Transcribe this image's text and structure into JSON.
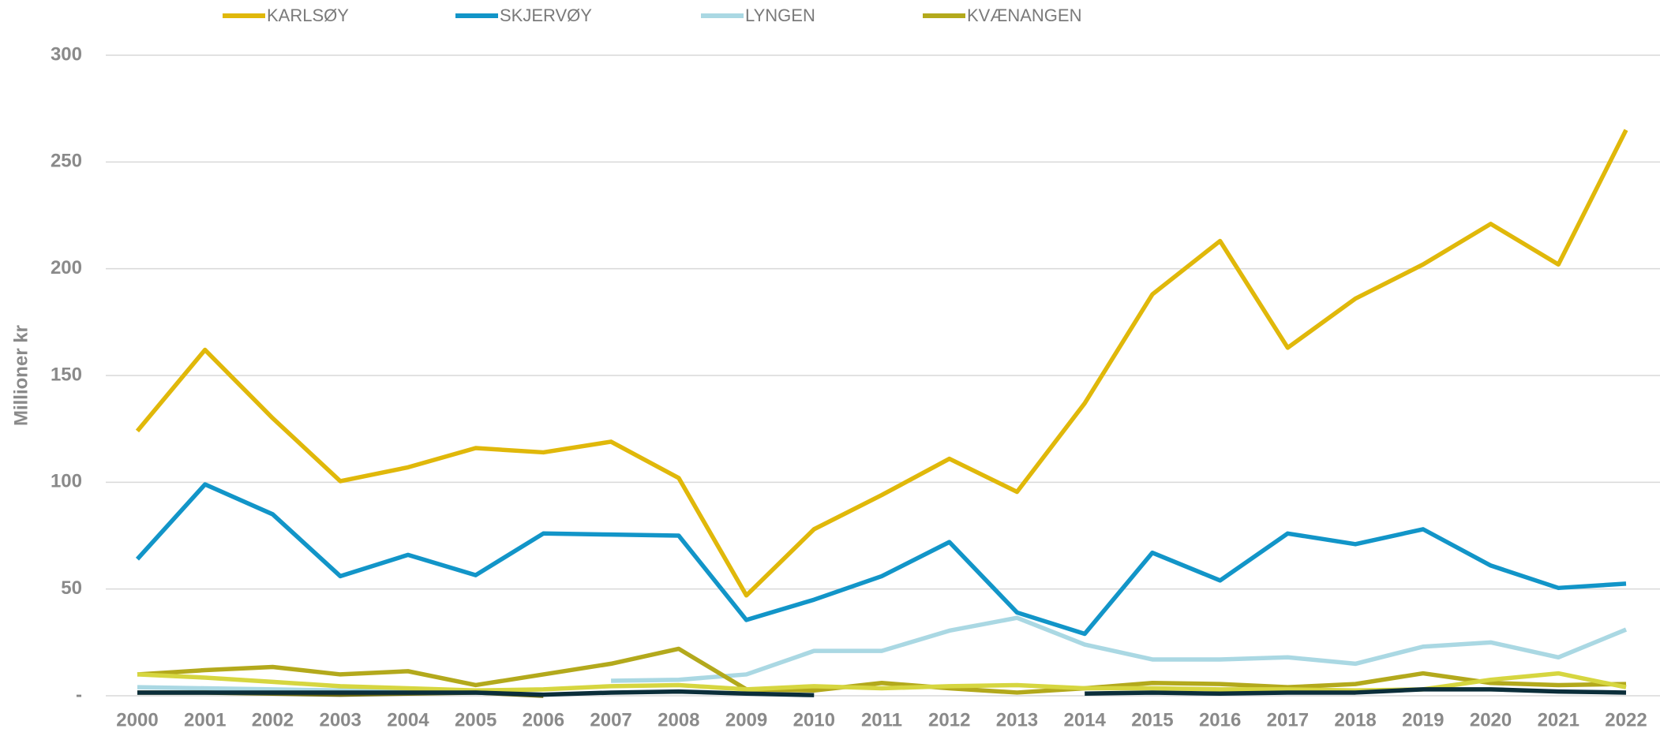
{
  "chart_data": {
    "type": "line",
    "y_label": "Millioner kr",
    "x": [
      "2000",
      "2001",
      "2002",
      "2003",
      "2004",
      "2005",
      "2006",
      "2007",
      "2008",
      "2009",
      "2010",
      "2011",
      "2012",
      "2013",
      "2014",
      "2015",
      "2016",
      "2017",
      "2018",
      "2019",
      "2020",
      "2021",
      "2022"
    ],
    "ylim": [
      0,
      300
    ],
    "yticks": [
      {
        "value": 0,
        "label": "-"
      },
      50,
      100,
      150,
      200,
      250,
      300
    ],
    "grid": true,
    "legend": "top",
    "series": [
      {
        "name": "KARLSØY",
        "color": "#e0b80a",
        "values": [
          124,
          162,
          130,
          100.5,
          107,
          116,
          114,
          119,
          102,
          47,
          78,
          94,
          111,
          95.5,
          137,
          188,
          213,
          163,
          186,
          202,
          221,
          202,
          265
        ]
      },
      {
        "name": "SKJERVØY",
        "color": "#1295c8",
        "values": [
          64,
          99,
          85,
          56,
          66,
          56.5,
          76,
          75.5,
          75,
          35.5,
          45,
          56,
          72,
          39,
          29,
          67,
          54,
          76,
          71,
          78,
          61,
          50.5,
          52.5
        ]
      },
      {
        "name": "LYNGEN",
        "color": "#aad8e3",
        "values": [
          4,
          3.5,
          3,
          2.5,
          2,
          1.5,
          null,
          7,
          7.5,
          10,
          21,
          21,
          30.5,
          36.5,
          24,
          17,
          17,
          18,
          15,
          23,
          25,
          18,
          31
        ]
      },
      {
        "name": "KVÆNANGEN",
        "color": "#b3a91c",
        "values": [
          10,
          12,
          13.5,
          10,
          11.5,
          5,
          10,
          15,
          22,
          3,
          2.5,
          6,
          3.5,
          1.5,
          3.5,
          6,
          5.5,
          4,
          5.5,
          10.5,
          6,
          5,
          5.5
        ]
      },
      {
        "color": "#d6d640",
        "values": [
          10,
          8.5,
          6.5,
          4.5,
          3.5,
          2.5,
          3,
          4.5,
          5,
          3,
          4.5,
          3.5,
          4.5,
          5,
          3.5,
          3.5,
          3,
          3,
          2.5,
          3,
          7.5,
          10.5,
          4
        ]
      },
      {
        "color": "#6b6812",
        "values": [
          1.5,
          1.5,
          1,
          0.5,
          1,
          1.5,
          0,
          null,
          null,
          null,
          null,
          null,
          null,
          null,
          null,
          null,
          null,
          null,
          null,
          null,
          null,
          null,
          null
        ]
      },
      {
        "color": "#0b2e3a",
        "values": [
          1.5,
          1.5,
          1.5,
          1.5,
          1.5,
          1.5,
          0.5,
          1.5,
          2,
          1,
          0.3,
          null,
          null,
          null,
          1,
          1.5,
          1,
          1.5,
          1.5,
          3,
          3,
          2,
          1.5
        ]
      }
    ]
  }
}
